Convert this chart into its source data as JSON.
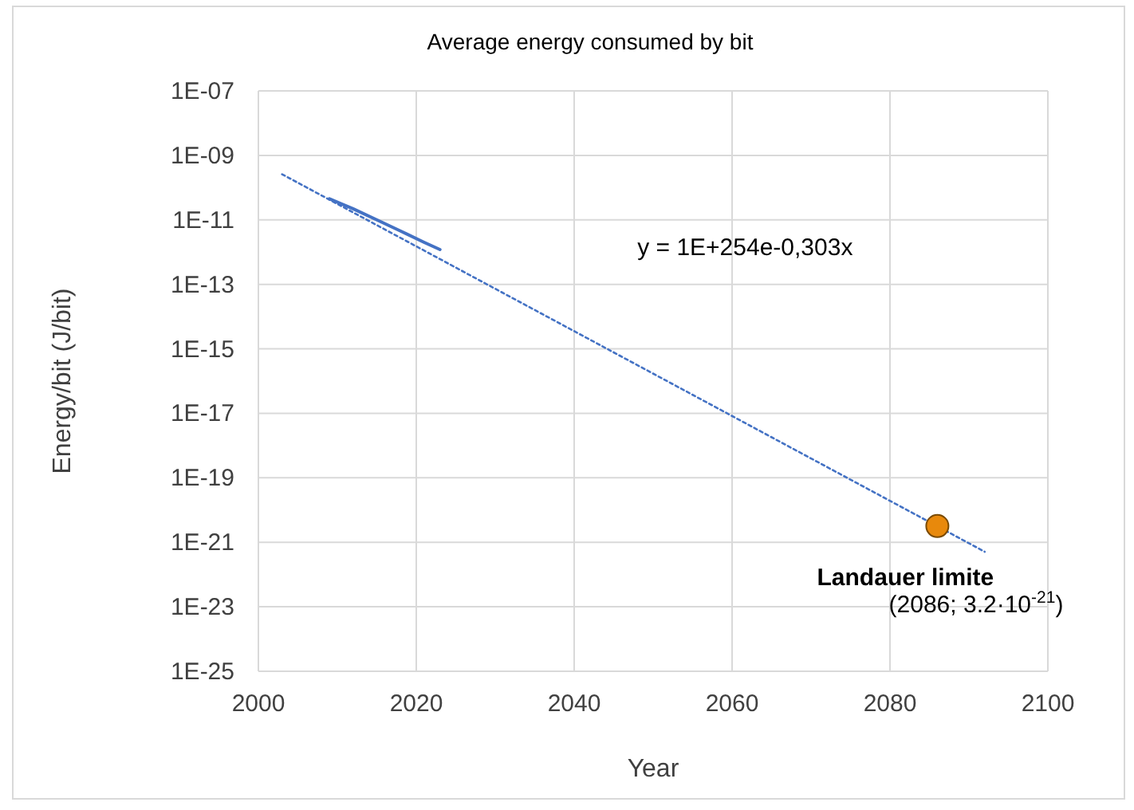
{
  "chart_data": {
    "type": "line",
    "title": "Average energy consumed by bit",
    "xlabel": "Year",
    "ylabel": "Energy/bit (J/bit)",
    "log": "y",
    "grid": true,
    "xlim": [
      2000,
      2100
    ],
    "xticks": [
      2000,
      2020,
      2040,
      2060,
      2080,
      2100
    ],
    "ylim": [
      1e-25,
      1e-07
    ],
    "yticks": [
      {
        "value": 1e-25,
        "label": "1E-25"
      },
      {
        "value": 1e-23,
        "label": "1E-23"
      },
      {
        "value": 1e-21,
        "label": "1E-21"
      },
      {
        "value": 1e-19,
        "label": "1E-19"
      },
      {
        "value": 1e-17,
        "label": "1E-17"
      },
      {
        "value": 1e-15,
        "label": "1E-15"
      },
      {
        "value": 1e-13,
        "label": "1E-13"
      },
      {
        "value": 1e-11,
        "label": "1E-11"
      },
      {
        "value": 1e-09,
        "label": "1E-09"
      },
      {
        "value": 1e-07,
        "label": "1E-07"
      }
    ],
    "series": [
      {
        "type": "line",
        "color": "#4472c4",
        "line_style": "dotted",
        "x": [
          2003,
          2092
        ],
        "values": [
          2.6e-10,
          5.1e-22
        ]
      },
      {
        "type": "line",
        "color": "#4472c4",
        "line_style": "solid",
        "x": [
          2009,
          2012,
          2015,
          2018,
          2021,
          2023
        ],
        "values": [
          4.5e-11,
          2.2e-11,
          1e-11,
          4.5e-12,
          2e-12,
          1.2e-12
        ]
      },
      {
        "type": "scatter",
        "name": "Landauer limite",
        "color": "#e8890c",
        "marker": "circle",
        "x": [
          2086
        ],
        "values": [
          3.2e-21
        ]
      }
    ],
    "annotations": [
      "y = 1E+254e-0,303x",
      "(2086; 3.2·10$^{-21}$)"
    ]
  }
}
